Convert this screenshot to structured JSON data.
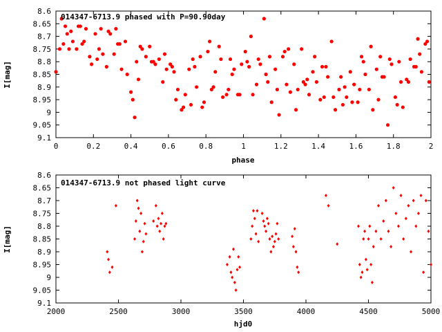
{
  "chart_data": [
    {
      "type": "scatter",
      "title": "014347-6713.9 phased with P=90.90day",
      "xlabel": "phase",
      "ylabel": "I[mag]",
      "xlim": [
        0,
        2
      ],
      "ylim": [
        9.1,
        8.6
      ],
      "y_inverted": true,
      "xticks": [
        "0",
        "0.2",
        "0.4",
        "0.6",
        "0.8",
        "1",
        "1.2",
        "1.4",
        "1.6",
        "1.8",
        "2"
      ],
      "yticks": [
        "8.6",
        "8.65",
        "8.7",
        "8.75",
        "8.8",
        "8.85",
        "8.9",
        "8.95",
        "9",
        "9.05",
        "9.1"
      ],
      "marker": "filled-circle",
      "color": "#ff0000",
      "x": [
        0.0,
        0.02,
        0.04,
        0.05,
        0.07,
        0.09,
        0.11,
        0.12,
        0.14,
        0.16,
        0.19,
        0.21,
        0.23,
        0.25,
        0.27,
        0.29,
        0.31,
        0.33,
        0.35,
        0.38,
        0.4,
        0.42,
        0.44,
        0.46,
        0.48,
        0.5,
        0.53,
        0.55,
        0.57,
        0.59,
        0.61,
        0.63,
        0.65,
        0.67,
        0.69,
        0.71,
        0.73,
        0.75,
        0.77,
        0.79,
        0.81,
        0.83,
        0.85,
        0.87,
        0.89,
        0.91,
        0.93,
        0.95,
        0.97,
        0.99,
        1.01,
        1.03,
        1.05,
        1.07,
        1.09,
        1.11,
        1.13,
        1.15,
        1.17,
        1.19,
        1.21,
        1.23,
        1.25,
        1.27,
        1.29,
        1.31,
        1.33,
        1.35,
        1.37,
        1.39,
        1.41,
        1.43,
        1.45,
        1.47,
        1.49,
        1.51,
        1.53,
        1.55,
        1.57,
        1.59,
        1.61,
        1.63,
        1.65,
        1.67,
        1.69,
        1.71,
        1.73,
        1.75,
        1.77,
        1.79,
        1.81,
        1.83,
        1.85,
        1.87,
        1.89,
        1.91,
        1.93,
        1.95,
        1.97,
        1.99,
        0.03,
        0.08,
        0.13,
        0.18,
        0.22,
        0.28,
        0.32,
        0.37,
        0.41,
        0.45,
        0.52,
        0.58,
        0.62,
        0.68,
        0.72,
        0.78,
        0.82,
        0.88,
        0.92,
        0.98,
        1.02,
        1.08,
        1.12,
        1.18,
        1.22,
        1.28,
        1.32,
        1.38,
        1.42,
        1.48,
        1.52,
        1.58,
        1.62,
        1.68,
        1.72,
        1.78,
        1.82,
        1.88,
        1.92,
        1.98,
        0.06,
        0.15,
        0.24,
        0.34,
        0.43,
        0.51,
        0.64,
        0.74,
        0.84,
        0.94,
        1.04,
        1.14,
        1.24,
        1.34,
        1.44,
        1.54,
        1.64,
        1.74,
        1.84,
        1.94
      ],
      "y": [
        8.84,
        8.75,
        8.73,
        8.66,
        8.75,
        8.72,
        8.75,
        8.66,
        8.73,
        8.67,
        8.81,
        8.69,
        8.75,
        8.77,
        8.82,
        8.69,
        8.77,
        8.73,
        8.83,
        8.85,
        8.92,
        9.02,
        8.87,
        8.75,
        8.78,
        8.74,
        8.81,
        8.79,
        8.88,
        8.83,
        8.81,
        8.84,
        8.91,
        8.99,
        8.93,
        8.83,
        8.79,
        8.9,
        8.78,
        8.96,
        8.76,
        8.91,
        8.84,
        8.74,
        8.94,
        8.93,
        8.79,
        8.83,
        8.93,
        8.81,
        8.76,
        8.82,
        8.93,
        8.89,
        8.81,
        8.63,
        8.88,
        8.96,
        8.83,
        9.01,
        8.78,
        8.89,
        8.92,
        8.81,
        8.91,
        8.75,
        8.89,
        8.93,
        8.84,
        8.88,
        8.95,
        8.94,
        8.86,
        8.72,
        8.99,
        8.91,
        8.97,
        8.94,
        8.84,
        8.89,
        8.96,
        8.78,
        8.85,
        8.91,
        8.99,
        8.83,
        8.78,
        8.86,
        9.05,
        8.81,
        8.94,
        8.8,
        8.98,
        8.87,
        8.79,
        8.82,
        8.71,
        8.84,
        8.73,
        8.88,
        8.63,
        8.68,
        8.66,
        8.78,
        8.79,
        8.68,
        8.67,
        8.72,
        8.95,
        8.74,
        8.8,
        8.77,
        8.82,
        8.98,
        8.97,
        8.98,
        8.72,
        8.79,
        8.91,
        8.93,
        8.8,
        8.79,
        8.85,
        8.91,
        8.76,
        8.99,
        8.88,
        8.78,
        8.82,
        8.94,
        8.86,
        8.96,
        8.91,
        8.74,
        8.95,
        8.79,
        8.97,
        8.88,
        8.82,
        8.72,
        8.69,
        8.72,
        8.67,
        8.73,
        8.8,
        8.8,
        8.95,
        8.82,
        8.9,
        8.85,
        8.7,
        8.78,
        8.75,
        8.87,
        8.82,
        8.9,
        8.8,
        8.86,
        8.88,
        8.77
      ]
    },
    {
      "type": "scatter",
      "title": "014347-6713.9 not phased light curve",
      "xlabel": "hjd0",
      "ylabel": "I[mag]",
      "xlim": [
        2000,
        5000
      ],
      "ylim": [
        9.1,
        8.6
      ],
      "y_inverted": true,
      "xticks": [
        "2000",
        "2500",
        "3000",
        "3500",
        "4000",
        "4500",
        "5000"
      ],
      "yticks": [
        "8.6",
        "8.65",
        "8.7",
        "8.75",
        "8.8",
        "8.85",
        "8.9",
        "8.95",
        "9",
        "9.05",
        "9.1"
      ],
      "marker": "small-diamond",
      "color": "#ff0000",
      "x": [
        2410,
        2420,
        2430,
        2450,
        2480,
        2630,
        2640,
        2650,
        2660,
        2670,
        2680,
        2690,
        2700,
        2710,
        2720,
        2780,
        2800,
        2810,
        2820,
        2830,
        2840,
        2850,
        2860,
        2870,
        2880,
        3370,
        3390,
        3400,
        3410,
        3420,
        3430,
        3440,
        3450,
        3460,
        3470,
        3560,
        3570,
        3580,
        3590,
        3600,
        3610,
        3620,
        3650,
        3660,
        3670,
        3680,
        3690,
        3700,
        3710,
        3720,
        3730,
        3740,
        3750,
        3760,
        3770,
        3780,
        3890,
        3900,
        3910,
        3920,
        3930,
        3940,
        4160,
        4180,
        4250,
        4420,
        4430,
        4440,
        4450,
        4460,
        4470,
        4480,
        4490,
        4500,
        4510,
        4520,
        4530,
        4540,
        4560,
        4580,
        4600,
        4620,
        4640,
        4660,
        4680,
        4700,
        4720,
        4740,
        4760,
        4780,
        4800,
        4820,
        4840,
        4860,
        4880,
        4900,
        4920,
        4940,
        4960,
        4980,
        5000
      ],
      "y": [
        8.9,
        8.93,
        8.98,
        8.96,
        8.72,
        8.85,
        8.78,
        8.7,
        8.73,
        8.82,
        8.75,
        8.9,
        8.86,
        8.79,
        8.83,
        8.78,
        8.72,
        8.8,
        8.77,
        8.82,
        8.79,
        8.75,
        8.85,
        8.8,
        8.79,
        8.95,
        8.92,
        8.98,
        9.0,
        8.89,
        9.02,
        9.05,
        8.97,
        8.92,
        8.96,
        8.85,
        8.8,
        8.74,
        8.77,
        8.83,
        8.74,
        8.86,
        8.75,
        8.78,
        8.8,
        8.82,
        8.77,
        8.79,
        8.85,
        8.9,
        8.84,
        8.88,
        8.86,
        8.83,
        8.79,
        8.85,
        8.84,
        8.88,
        8.81,
        8.9,
        8.96,
        8.98,
        8.68,
        8.72,
        8.87,
        8.8,
        8.95,
        9.0,
        8.98,
        8.85,
        8.82,
        8.93,
        8.97,
        8.85,
        8.8,
        8.95,
        9.02,
        8.88,
        8.82,
        8.72,
        8.85,
        8.78,
        8.7,
        8.82,
        8.88,
        8.65,
        8.75,
        8.8,
        8.68,
        8.85,
        8.77,
        8.72,
        8.9,
        8.7,
        8.8,
        8.75,
        8.68,
        8.98,
        8.7,
        8.82,
        8.95
      ]
    }
  ]
}
